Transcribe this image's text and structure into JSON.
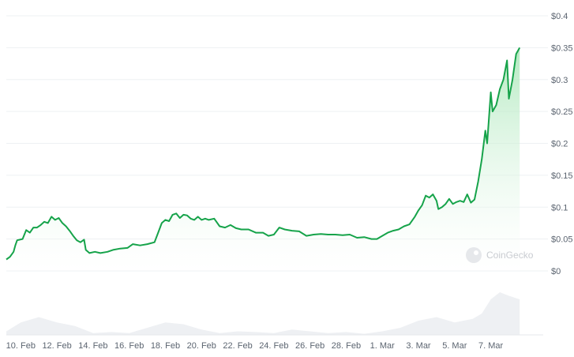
{
  "watermark": "CoinGecko",
  "chart_data": {
    "type": "area",
    "currency_prefix": "$",
    "y_ticks": [
      "$0",
      "$0.05",
      "$0.1",
      "$0.15",
      "$0.2",
      "$0.25",
      "$0.3",
      "$0.35",
      "$0.4"
    ],
    "x_ticks": [
      "10. Feb",
      "12. Feb",
      "14. Feb",
      "16. Feb",
      "18. Feb",
      "20. Feb",
      "22. Feb",
      "24. Feb",
      "26. Feb",
      "28. Feb",
      "1. Mar",
      "3. Mar",
      "5. Mar",
      "7. Mar"
    ],
    "ylim": [
      0,
      0.4
    ],
    "xlim_day_index": [
      -0.8,
      28.9
    ],
    "price_series": {
      "name": "",
      "points": [
        [
          -0.8,
          0.018
        ],
        [
          -0.6,
          0.022
        ],
        [
          -0.4,
          0.03
        ],
        [
          -0.3,
          0.04
        ],
        [
          -0.2,
          0.048
        ],
        [
          0.1,
          0.05
        ],
        [
          0.3,
          0.064
        ],
        [
          0.5,
          0.06
        ],
        [
          0.7,
          0.068
        ],
        [
          0.9,
          0.068
        ],
        [
          1.1,
          0.072
        ],
        [
          1.3,
          0.077
        ],
        [
          1.5,
          0.075
        ],
        [
          1.7,
          0.085
        ],
        [
          1.9,
          0.08
        ],
        [
          2.1,
          0.083
        ],
        [
          2.3,
          0.075
        ],
        [
          2.5,
          0.07
        ],
        [
          2.7,
          0.063
        ],
        [
          2.9,
          0.055
        ],
        [
          3.1,
          0.048
        ],
        [
          3.3,
          0.045
        ],
        [
          3.5,
          0.049
        ],
        [
          3.6,
          0.033
        ],
        [
          3.8,
          0.028
        ],
        [
          4.1,
          0.03
        ],
        [
          4.4,
          0.028
        ],
        [
          4.8,
          0.03
        ],
        [
          5.1,
          0.033
        ],
        [
          5.5,
          0.035
        ],
        [
          5.9,
          0.036
        ],
        [
          6.2,
          0.042
        ],
        [
          6.6,
          0.04
        ],
        [
          7.0,
          0.042
        ],
        [
          7.4,
          0.045
        ],
        [
          7.6,
          0.06
        ],
        [
          7.8,
          0.075
        ],
        [
          8.0,
          0.08
        ],
        [
          8.2,
          0.078
        ],
        [
          8.4,
          0.088
        ],
        [
          8.6,
          0.09
        ],
        [
          8.8,
          0.083
        ],
        [
          9.0,
          0.088
        ],
        [
          9.2,
          0.087
        ],
        [
          9.4,
          0.082
        ],
        [
          9.6,
          0.08
        ],
        [
          9.8,
          0.085
        ],
        [
          10.0,
          0.08
        ],
        [
          10.2,
          0.082
        ],
        [
          10.4,
          0.08
        ],
        [
          10.7,
          0.082
        ],
        [
          11.0,
          0.07
        ],
        [
          11.3,
          0.068
        ],
        [
          11.6,
          0.072
        ],
        [
          11.9,
          0.067
        ],
        [
          12.2,
          0.065
        ],
        [
          12.6,
          0.065
        ],
        [
          13.0,
          0.06
        ],
        [
          13.4,
          0.06
        ],
        [
          13.7,
          0.055
        ],
        [
          14.0,
          0.057
        ],
        [
          14.3,
          0.068
        ],
        [
          14.6,
          0.065
        ],
        [
          15.0,
          0.063
        ],
        [
          15.4,
          0.062
        ],
        [
          15.8,
          0.055
        ],
        [
          16.2,
          0.057
        ],
        [
          16.6,
          0.058
        ],
        [
          17.0,
          0.057
        ],
        [
          17.4,
          0.057
        ],
        [
          17.8,
          0.056
        ],
        [
          18.2,
          0.057
        ],
        [
          18.6,
          0.052
        ],
        [
          19.0,
          0.053
        ],
        [
          19.4,
          0.05
        ],
        [
          19.7,
          0.05
        ],
        [
          20.0,
          0.055
        ],
        [
          20.3,
          0.06
        ],
        [
          20.6,
          0.063
        ],
        [
          20.9,
          0.065
        ],
        [
          21.2,
          0.07
        ],
        [
          21.5,
          0.073
        ],
        [
          21.8,
          0.085
        ],
        [
          22.0,
          0.095
        ],
        [
          22.2,
          0.103
        ],
        [
          22.4,
          0.118
        ],
        [
          22.6,
          0.115
        ],
        [
          22.8,
          0.12
        ],
        [
          23.0,
          0.11
        ],
        [
          23.1,
          0.097
        ],
        [
          23.3,
          0.1
        ],
        [
          23.5,
          0.105
        ],
        [
          23.7,
          0.113
        ],
        [
          23.9,
          0.105
        ],
        [
          24.1,
          0.108
        ],
        [
          24.3,
          0.11
        ],
        [
          24.5,
          0.108
        ],
        [
          24.7,
          0.12
        ],
        [
          24.9,
          0.107
        ],
        [
          25.1,
          0.112
        ],
        [
          25.3,
          0.14
        ],
        [
          25.5,
          0.175
        ],
        [
          25.7,
          0.22
        ],
        [
          25.8,
          0.2
        ],
        [
          25.9,
          0.24
        ],
        [
          26.0,
          0.28
        ],
        [
          26.1,
          0.25
        ],
        [
          26.3,
          0.26
        ],
        [
          26.5,
          0.285
        ],
        [
          26.7,
          0.3
        ],
        [
          26.9,
          0.33
        ],
        [
          27.0,
          0.27
        ],
        [
          27.2,
          0.3
        ],
        [
          27.4,
          0.34
        ],
        [
          27.6,
          0.35
        ]
      ]
    },
    "volume_series": {
      "name": "",
      "points": [
        [
          -0.8,
          0.1
        ],
        [
          0.0,
          0.35
        ],
        [
          1.0,
          0.5
        ],
        [
          2.0,
          0.35
        ],
        [
          3.0,
          0.25
        ],
        [
          4.0,
          0.05
        ],
        [
          5.0,
          0.08
        ],
        [
          6.0,
          0.05
        ],
        [
          7.0,
          0.2
        ],
        [
          8.0,
          0.35
        ],
        [
          9.0,
          0.3
        ],
        [
          10.0,
          0.15
        ],
        [
          11.0,
          0.05
        ],
        [
          12.0,
          0.1
        ],
        [
          13.0,
          0.08
        ],
        [
          14.0,
          0.05
        ],
        [
          15.0,
          0.15
        ],
        [
          16.0,
          0.1
        ],
        [
          17.0,
          0.05
        ],
        [
          18.0,
          0.08
        ],
        [
          19.0,
          0.03
        ],
        [
          20.0,
          0.1
        ],
        [
          21.0,
          0.2
        ],
        [
          22.0,
          0.4
        ],
        [
          23.0,
          0.5
        ],
        [
          24.0,
          0.35
        ],
        [
          25.0,
          0.45
        ],
        [
          25.5,
          0.6
        ],
        [
          26.0,
          1.0
        ],
        [
          26.5,
          1.2
        ],
        [
          27.0,
          1.1
        ],
        [
          27.6,
          1.0
        ]
      ]
    },
    "grid": true,
    "axis_position": "right",
    "colors": {
      "line": "#16a34a",
      "area_top": "#a7e6b6",
      "area_bottom": "#ffffff",
      "grid": "#eef0f3",
      "volume": "#eef0f3"
    }
  }
}
